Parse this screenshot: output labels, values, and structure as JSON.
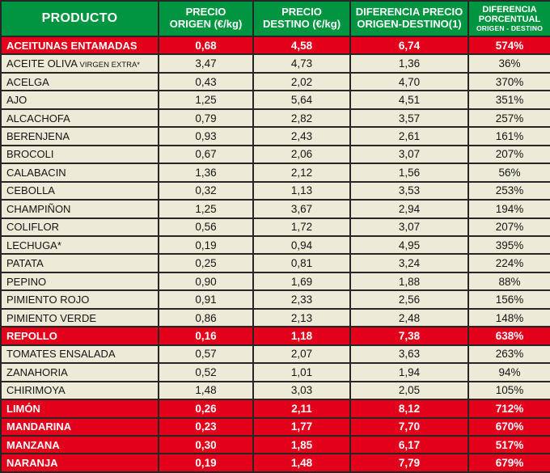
{
  "colors": {
    "header_green": "#009540",
    "highlight_red": "#E2001A",
    "row_cream": "#EDEBD8",
    "grid_border": "#262626",
    "header_text": "#FFFFFF",
    "row_text": "#141414",
    "highlight_text": "#FFFFFF"
  },
  "chart_data": {
    "type": "table",
    "columns": [
      {
        "lines": [
          "PRODUCTO"
        ],
        "sublabel": ""
      },
      {
        "lines": [
          "PRECIO",
          "ORIGEN (€/kg)"
        ],
        "sublabel": ""
      },
      {
        "lines": [
          "PRECIO",
          "DESTINO (€/kg)"
        ],
        "sublabel": ""
      },
      {
        "lines": [
          "DIFERENCIA PRECIO",
          "ORIGEN-DESTINO(1)"
        ],
        "sublabel": ""
      },
      {
        "lines": [
          "DIFERENCIA",
          "PORCENTUAL"
        ],
        "sublabel": "ORIGEN - DESTINO"
      }
    ],
    "rows": [
      {
        "product": "ACEITUNAS ENTAMADAS",
        "product_suffix": "",
        "origin": "0,68",
        "destination": "4,58",
        "difference": "6,74",
        "percent": "574%",
        "highlight": true
      },
      {
        "product": "ACEITE OLIVA",
        "product_suffix": "VIRGEN EXTRA*",
        "origin": "3,47",
        "destination": "4,73",
        "difference": "1,36",
        "percent": "36%",
        "highlight": false
      },
      {
        "product": "ACELGA",
        "product_suffix": "",
        "origin": "0,43",
        "destination": "2,02",
        "difference": "4,70",
        "percent": "370%",
        "highlight": false
      },
      {
        "product": "AJO",
        "product_suffix": "",
        "origin": "1,25",
        "destination": "5,64",
        "difference": "4,51",
        "percent": "351%",
        "highlight": false
      },
      {
        "product": "ALCACHOFA",
        "product_suffix": "",
        "origin": "0,79",
        "destination": "2,82",
        "difference": "3,57",
        "percent": "257%",
        "highlight": false
      },
      {
        "product": "BERENJENA",
        "product_suffix": "",
        "origin": "0,93",
        "destination": "2,43",
        "difference": "2,61",
        "percent": "161%",
        "highlight": false
      },
      {
        "product": "BROCOLI",
        "product_suffix": "",
        "origin": "0,67",
        "destination": "2,06",
        "difference": "3,07",
        "percent": "207%",
        "highlight": false
      },
      {
        "product": "CALABACIN",
        "product_suffix": "",
        "origin": "1,36",
        "destination": "2,12",
        "difference": "1,56",
        "percent": "56%",
        "highlight": false
      },
      {
        "product": "CEBOLLA",
        "product_suffix": "",
        "origin": "0,32",
        "destination": "1,13",
        "difference": "3,53",
        "percent": "253%",
        "highlight": false
      },
      {
        "product": "CHAMPIÑON",
        "product_suffix": "",
        "origin": "1,25",
        "destination": "3,67",
        "difference": "2,94",
        "percent": "194%",
        "highlight": false
      },
      {
        "product": "COLIFLOR",
        "product_suffix": "",
        "origin": "0,56",
        "destination": "1,72",
        "difference": "3,07",
        "percent": "207%",
        "highlight": false
      },
      {
        "product": "LECHUGA*",
        "product_suffix": "",
        "origin": "0,19",
        "destination": "0,94",
        "difference": "4,95",
        "percent": "395%",
        "highlight": false
      },
      {
        "product": "PATATA",
        "product_suffix": "",
        "origin": "0,25",
        "destination": "0,81",
        "difference": "3,24",
        "percent": "224%",
        "highlight": false
      },
      {
        "product": "PEPINO",
        "product_suffix": "",
        "origin": "0,90",
        "destination": "1,69",
        "difference": "1,88",
        "percent": "88%",
        "highlight": false
      },
      {
        "product": "PIMIENTO ROJO",
        "product_suffix": "",
        "origin": "0,91",
        "destination": "2,33",
        "difference": "2,56",
        "percent": "156%",
        "highlight": false
      },
      {
        "product": "PIMIENTO VERDE",
        "product_suffix": "",
        "origin": "0,86",
        "destination": "2,13",
        "difference": "2,48",
        "percent": "148%",
        "highlight": false
      },
      {
        "product": "REPOLLO",
        "product_suffix": "",
        "origin": "0,16",
        "destination": "1,18",
        "difference": "7,38",
        "percent": "638%",
        "highlight": true
      },
      {
        "product": "TOMATES ENSALADA",
        "product_suffix": "",
        "origin": "0,57",
        "destination": "2,07",
        "difference": "3,63",
        "percent": "263%",
        "highlight": false
      },
      {
        "product": "ZANAHORIA",
        "product_suffix": "",
        "origin": "0,52",
        "destination": "1,01",
        "difference": "1,94",
        "percent": "94%",
        "highlight": false
      },
      {
        "product": "CHIRIMOYA",
        "product_suffix": "",
        "origin": "1,48",
        "destination": "3,03",
        "difference": "2,05",
        "percent": "105%",
        "highlight": false
      },
      {
        "product": "LIMÓN",
        "product_suffix": "",
        "origin": "0,26",
        "destination": "2,11",
        "difference": "8,12",
        "percent": "712%",
        "highlight": true
      },
      {
        "product": "MANDARINA",
        "product_suffix": "",
        "origin": "0,23",
        "destination": "1,77",
        "difference": "7,70",
        "percent": "670%",
        "highlight": true
      },
      {
        "product": "MANZANA",
        "product_suffix": "",
        "origin": "0,30",
        "destination": "1,85",
        "difference": "6,17",
        "percent": "517%",
        "highlight": true
      },
      {
        "product": "NARANJA",
        "product_suffix": "",
        "origin": "0,19",
        "destination": "1,48",
        "difference": "7,79",
        "percent": "679%",
        "highlight": true
      }
    ]
  }
}
